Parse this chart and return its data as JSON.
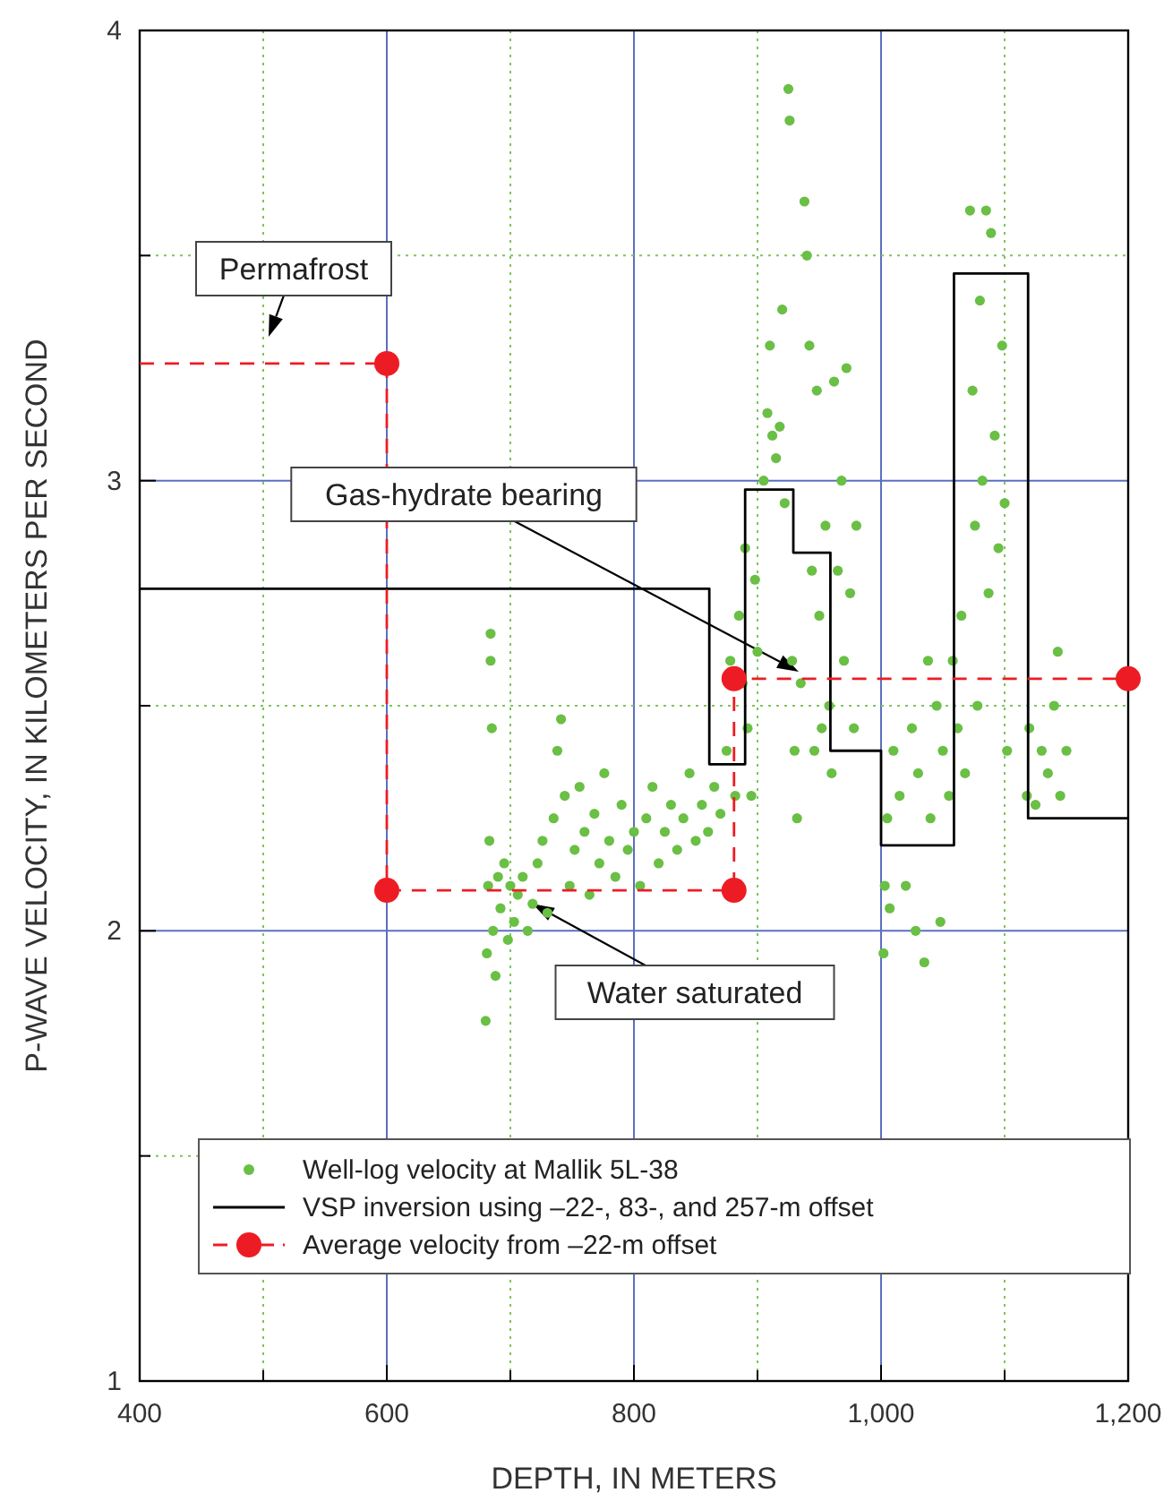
{
  "chart_data": {
    "type": "scatter",
    "xlabel": "DEPTH, IN METERS",
    "ylabel": "P-WAVE VELOCITY, IN KILOMETERS PER SECOND",
    "xlim": [
      400,
      1200
    ],
    "ylim": [
      1,
      4
    ],
    "xticks": [
      400,
      {
        "value": 500,
        "label": null
      },
      600,
      {
        "value": 700,
        "label": null
      },
      800,
      {
        "value": 900,
        "label": null
      },
      {
        "value": 1000,
        "label": "1,000"
      },
      {
        "value": 1100,
        "label": null
      },
      {
        "value": 1200,
        "label": "1,200"
      }
    ],
    "yticks": [
      1,
      {
        "value": 1.5,
        "label": null
      },
      2,
      {
        "value": 2.5,
        "label": null
      },
      3,
      {
        "value": 3.5,
        "label": null
      },
      4
    ],
    "grid": true,
    "legend": "bottom",
    "annotations": [
      "Permafrost",
      "Gas-hydrate bearing",
      {
        "text": "Water saturated",
        "x": 718,
        "y": 2.06
      }
    ],
    "series": [
      {
        "name": "Well-log velocity at Mallik 5L-38",
        "color": "#6abf45",
        "marker": "circle",
        "x": [
          680,
          681,
          682,
          683,
          684,
          684,
          685,
          686,
          688,
          690,
          692,
          695,
          698,
          700,
          703,
          706,
          710,
          714,
          718,
          722,
          726,
          730,
          735,
          738,
          741,
          744,
          748,
          752,
          756,
          760,
          764,
          768,
          772,
          776,
          780,
          785,
          790,
          795,
          800,
          805,
          810,
          815,
          820,
          825,
          830,
          835,
          840,
          845,
          850,
          855,
          860,
          865,
          870,
          875,
          878,
          882,
          885,
          888,
          890,
          892,
          895,
          898,
          900,
          905,
          908,
          910,
          912,
          915,
          918,
          920,
          922,
          925,
          926,
          928,
          930,
          932,
          935,
          938,
          940,
          942,
          944,
          946,
          948,
          950,
          952,
          955,
          958,
          960,
          962,
          965,
          968,
          970,
          972,
          975,
          978,
          980,
          1002,
          1003,
          1005,
          1007,
          1010,
          1015,
          1020,
          1025,
          1028,
          1030,
          1035,
          1038,
          1040,
          1045,
          1048,
          1050,
          1055,
          1058,
          1062,
          1065,
          1068,
          1072,
          1074,
          1076,
          1078,
          1080,
          1082,
          1085,
          1087,
          1089,
          1092,
          1095,
          1098,
          1100,
          1102,
          1118,
          1120,
          1125,
          1130,
          1135,
          1140,
          1143,
          1145,
          1150
        ],
        "values": [
          1.8,
          1.95,
          2.1,
          2.2,
          2.66,
          2.6,
          2.45,
          2.0,
          1.9,
          2.12,
          2.05,
          2.15,
          1.98,
          2.1,
          2.02,
          2.08,
          2.12,
          2.0,
          2.06,
          2.15,
          2.2,
          2.04,
          2.25,
          2.4,
          2.47,
          2.3,
          2.1,
          2.18,
          2.32,
          2.22,
          2.08,
          2.26,
          2.15,
          2.35,
          2.2,
          2.12,
          2.28,
          2.18,
          2.22,
          2.1,
          2.25,
          2.32,
          2.15,
          2.22,
          2.28,
          2.18,
          2.25,
          2.35,
          2.2,
          2.28,
          2.22,
          2.32,
          2.26,
          2.4,
          2.6,
          2.3,
          2.7,
          2.55,
          2.85,
          2.45,
          2.3,
          2.78,
          2.62,
          3.0,
          3.15,
          3.3,
          3.1,
          3.05,
          3.12,
          3.38,
          2.95,
          3.87,
          3.8,
          2.6,
          2.4,
          2.25,
          2.55,
          3.62,
          3.5,
          3.3,
          2.8,
          2.4,
          3.2,
          2.7,
          2.45,
          2.9,
          2.5,
          2.35,
          3.22,
          2.8,
          3.0,
          2.6,
          3.25,
          2.75,
          2.45,
          2.9,
          1.95,
          2.1,
          2.25,
          2.05,
          2.4,
          2.3,
          2.1,
          2.45,
          2.0,
          2.35,
          1.93,
          2.6,
          2.25,
          2.5,
          2.02,
          2.4,
          2.3,
          2.6,
          2.45,
          2.7,
          2.35,
          3.6,
          3.2,
          2.9,
          2.5,
          3.4,
          3.0,
          3.6,
          2.75,
          3.55,
          3.1,
          2.85,
          3.3,
          2.95,
          2.4,
          2.3,
          2.45,
          2.28,
          2.4,
          2.35,
          2.5,
          2.62,
          2.3,
          2.4
        ]
      },
      {
        "name": "VSP inversion using –22-, 83-, and 257-m offset",
        "type": "line",
        "color": "#000000",
        "marker": "none",
        "line_style": "solid",
        "x": [
          400,
          861,
          861,
          890,
          890,
          929,
          929,
          959,
          959,
          1000,
          1000,
          1059,
          1059,
          1119,
          1119,
          1200
        ],
        "values": [
          2.76,
          2.76,
          2.37,
          2.37,
          2.98,
          2.98,
          2.84,
          2.84,
          2.4,
          2.4,
          2.19,
          2.19,
          3.46,
          3.46,
          2.25,
          2.25
        ]
      },
      {
        "name": "Average velocity from –22-m offset",
        "type": "line",
        "color": "#ed1c24",
        "marker": "circle",
        "line_style": "dashed",
        "x": [
          600,
          600,
          881,
          881,
          1200
        ],
        "values": [
          3.26,
          2.09,
          2.09,
          2.56,
          2.56
        ]
      },
      {
        "type": "line",
        "color": "#ed1c24",
        "marker": "none",
        "line_style": "dashed",
        "x": [
          400,
          600
        ],
        "values": [
          3.26,
          3.26
        ]
      }
    ]
  }
}
